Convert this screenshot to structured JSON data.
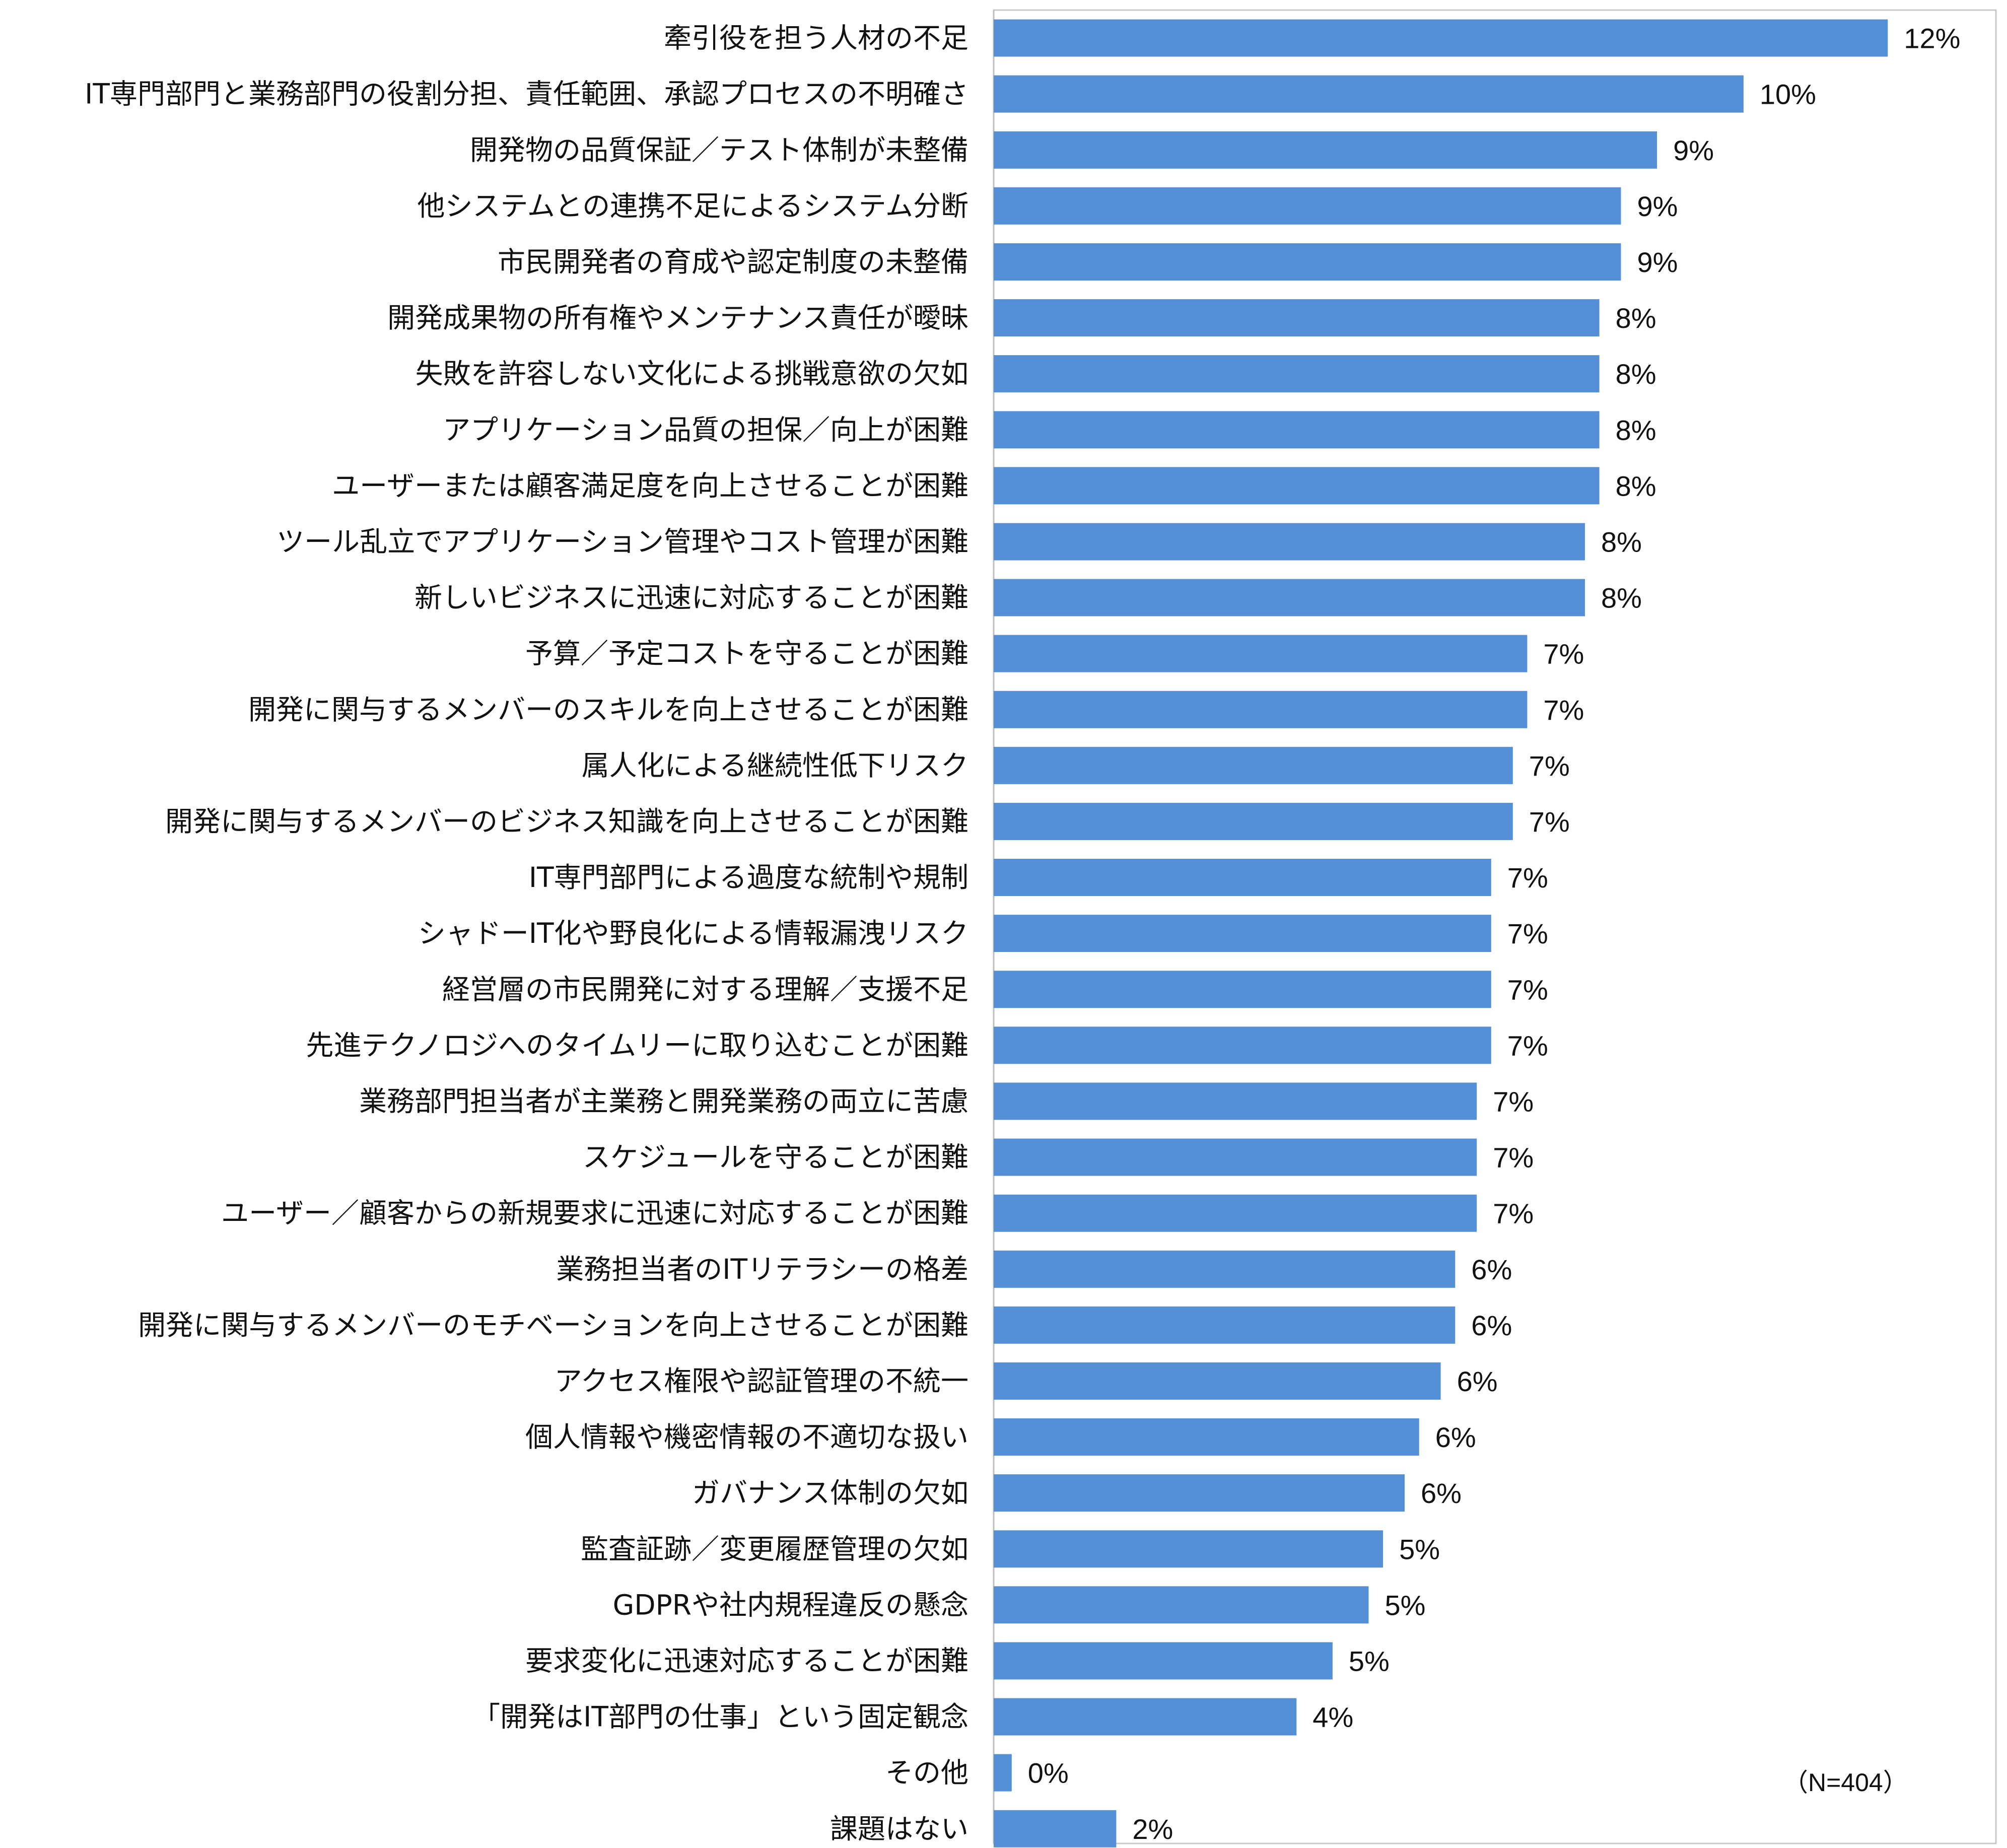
{
  "chart_data": {
    "type": "bar",
    "orientation": "horizontal",
    "bar_color": "#5590D6",
    "xlim": [
      0,
      13.9
    ],
    "grid": false,
    "categories": [
      "牽引役を担う人材の不足",
      "IT専門部門と業務部門の役割分担、責任範囲、承認プロセスの不明確さ",
      "開発物の品質保証／テスト体制が未整備",
      "他システムとの連携不足によるシステム分断",
      "市民開発者の育成や認定制度の未整備",
      "開発成果物の所有権やメンテナンス責任が曖昧",
      "失敗を許容しない文化による挑戦意欲の欠如",
      "アプリケーション品質の担保／向上が困難",
      "ユーザーまたは顧客満足度を向上させることが困難",
      "ツール乱立でアプリケーション管理やコスト管理が困難",
      "新しいビジネスに迅速に対応することが困難",
      "予算／予定コストを守ることが困難",
      "開発に関与するメンバーのスキルを向上させることが困難",
      "属人化による継続性低下リスク",
      "開発に関与するメンバーのビジネス知識を向上させることが困難",
      "IT専門部門による過度な統制や規制",
      "シャドーIT化や野良化による情報漏洩リスク",
      "経営層の市民開発に対する理解／支援不足",
      "先進テクノロジへのタイムリーに取り込むことが困難",
      "業務部門担当者が主業務と開発業務の両立に苦慮",
      "スケジュールを守ることが困難",
      "ユーザー／顧客からの新規要求に迅速に対応することが困難",
      "業務担当者のITリテラシーの格差",
      "開発に関与するメンバーのモチベーションを向上させることが困難",
      "アクセス権限や認証管理の不統一",
      "個人情報や機密情報の不適切な扱い",
      "ガバナンス体制の欠如",
      "監査証跡／変更履歴管理の欠如",
      "GDPRや社内規程違反の懸念",
      "要求変化に迅速対応することが困難",
      "「開発はIT部門の仕事」という固定観念",
      "その他",
      "課題はない"
    ],
    "values": [
      12.4,
      10.4,
      9.2,
      8.7,
      8.7,
      8.4,
      8.4,
      8.4,
      8.4,
      8.2,
      8.2,
      7.4,
      7.4,
      7.2,
      7.2,
      6.9,
      6.9,
      6.9,
      6.9,
      6.7,
      6.7,
      6.7,
      6.4,
      6.4,
      6.2,
      5.9,
      5.7,
      5.4,
      5.2,
      4.7,
      4.2,
      0.25,
      1.7
    ],
    "value_labels": [
      "12%",
      "10%",
      "9%",
      "9%",
      "9%",
      "8%",
      "8%",
      "8%",
      "8%",
      "8%",
      "8%",
      "7%",
      "7%",
      "7%",
      "7%",
      "7%",
      "7%",
      "7%",
      "7%",
      "7%",
      "7%",
      "7%",
      "6%",
      "6%",
      "6%",
      "6%",
      "6%",
      "5%",
      "5%",
      "5%",
      "4%",
      "0%",
      "2%"
    ],
    "annotation": "（N=404）"
  }
}
